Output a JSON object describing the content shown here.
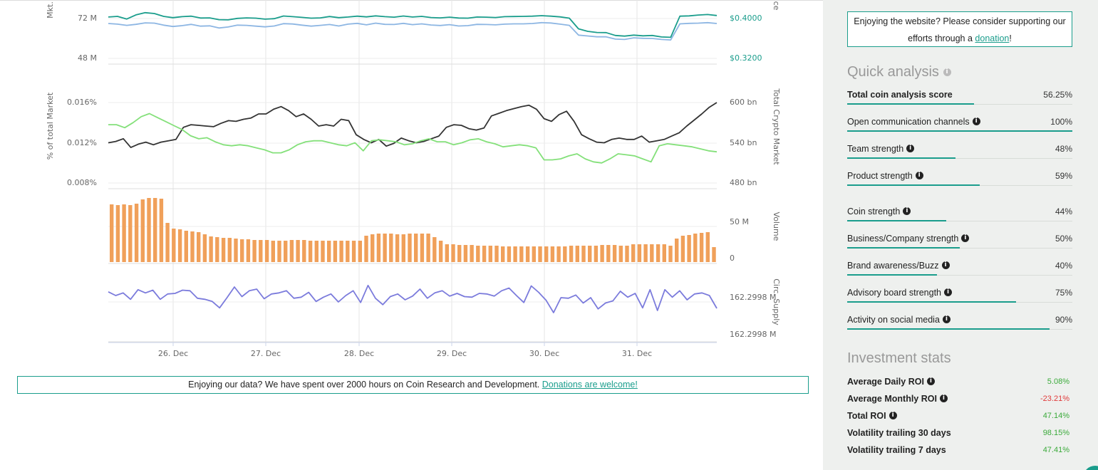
{
  "chart_data": [
    {
      "type": "line",
      "ylabel_left": "Mkt.",
      "ylabel_right": "ce",
      "yticks_left": [
        "72 M",
        "48 M"
      ],
      "yticks_right": [
        "$0.4000",
        "$0.3200"
      ],
      "series": [
        {
          "color": "#1a9d8c",
          "values": [
            72.9,
            73.3,
            71.7,
            74.2,
            75.5,
            75.0,
            73.3,
            72.5,
            73.1,
            73.4,
            72.3,
            72.4,
            71.3,
            71.2,
            72.1,
            72.4,
            72.2,
            71.6,
            71.9,
            73.5,
            73.1,
            72.7,
            72.2,
            72.4,
            73.2,
            72.5,
            72.9,
            73.4,
            73.0,
            73.6,
            73.1,
            72.8,
            73.5,
            72.9,
            73.3,
            72.6,
            72.4,
            72.8,
            72.3,
            72.2,
            72.9,
            72.8,
            72.6,
            73.1,
            73.2,
            73.3,
            73.4,
            73.7,
            73.4,
            73.0,
            72.2,
            65.8,
            64.3,
            63.6,
            63.5,
            61.8,
            61.4,
            62.0,
            61.6,
            61.8,
            60.9,
            60.7,
            73.4,
            73.6,
            74.1,
            74.4,
            73.8
          ]
        },
        {
          "color": "#8db6e3",
          "values": [
            69.0,
            68.6,
            67.9,
            68.5,
            69.4,
            69.2,
            68.0,
            67.2,
            67.7,
            68.5,
            67.4,
            67.6,
            66.3,
            66.9,
            68.0,
            67.9,
            67.4,
            67.0,
            67.5,
            68.9,
            68.7,
            68.0,
            67.4,
            67.9,
            68.4,
            67.5,
            68.6,
            69.1,
            68.2,
            69.2,
            68.5,
            68.4,
            69.1,
            68.3,
            68.8,
            68.1,
            67.8,
            68.3,
            67.5,
            67.7,
            68.5,
            68.4,
            68.2,
            68.6,
            68.8,
            68.8,
            69.0,
            69.5,
            69.3,
            68.6,
            67.9,
            62.0,
            61.5,
            61.0,
            61.0,
            59.6,
            59.4,
            60.4,
            60.1,
            60.0,
            59.4,
            59.1,
            68.8,
            69.1,
            69.2,
            69.5,
            69.0
          ]
        }
      ]
    },
    {
      "type": "line",
      "ylabel_left": "% of total Market",
      "ylabel_right": "Total Crypto Market",
      "yticks_left": [
        "0.016%",
        "0.012%",
        "0.008%"
      ],
      "yticks_right": [
        "600 bn",
        "540 bn",
        "480 bn"
      ],
      "series": [
        {
          "name": "Total Crypto Market",
          "color": "#333333",
          "axis": "right",
          "values": [
            540,
            542,
            546,
            533,
            538,
            541,
            537,
            541,
            543,
            545,
            563,
            567,
            566,
            565,
            564,
            569,
            573,
            572,
            575,
            577,
            583,
            583,
            590,
            594,
            588,
            579,
            583,
            575,
            565,
            567,
            565,
            575,
            573,
            552,
            545,
            540,
            545,
            535,
            539,
            547,
            543,
            540,
            542,
            546,
            550,
            563,
            567,
            566,
            561,
            559,
            562,
            580,
            584,
            588,
            591,
            594,
            596,
            590,
            576,
            572,
            582,
            587,
            572,
            552,
            546,
            541,
            540,
            545,
            547,
            545,
            545,
            550,
            541,
            543,
            545,
            550,
            555,
            565,
            574,
            583,
            593,
            600
          ]
        },
        {
          "name": "% of total Market",
          "color": "#84e07a",
          "axis": "left",
          "values": [
            0.0138,
            0.0138,
            0.0135,
            0.014,
            0.0146,
            0.0149,
            0.0145,
            0.0141,
            0.0137,
            0.0133,
            0.0127,
            0.0124,
            0.0125,
            0.0121,
            0.0118,
            0.0117,
            0.0118,
            0.0117,
            0.0115,
            0.0113,
            0.011,
            0.011,
            0.0113,
            0.0118,
            0.0121,
            0.0122,
            0.0122,
            0.012,
            0.0118,
            0.0117,
            0.012,
            0.0112,
            0.0122,
            0.0123,
            0.0122,
            0.0121,
            0.0118,
            0.0119,
            0.0122,
            0.0124,
            0.0121,
            0.0121,
            0.0118,
            0.012,
            0.0123,
            0.0124,
            0.0121,
            0.0119,
            0.0116,
            0.0117,
            0.0118,
            0.0117,
            0.0115,
            0.0103,
            0.0103,
            0.0104,
            0.0107,
            0.0109,
            0.0104,
            0.0101,
            0.01,
            0.0104,
            0.0109,
            0.0108,
            0.0107,
            0.0104,
            0.0101,
            0.0117,
            0.0119,
            0.0118,
            0.0117,
            0.0116,
            0.0114,
            0.0112,
            0.0111
          ]
        }
      ]
    },
    {
      "type": "bar",
      "ylabel_right": "Volume",
      "yticks_right": [
        "50 M",
        "0"
      ],
      "color": "#f0a05a",
      "values": [
        81,
        80,
        81,
        80,
        82,
        88,
        90,
        90,
        89,
        55,
        47,
        46,
        44,
        43,
        42,
        39,
        36,
        35,
        34,
        34,
        33,
        32,
        32,
        31,
        31,
        31,
        30,
        30,
        30,
        31,
        31,
        31,
        30,
        30,
        30,
        30,
        30,
        30,
        30,
        30,
        30,
        37,
        39,
        40,
        40,
        40,
        39,
        39,
        40,
        40,
        40,
        40,
        35,
        30,
        25,
        25,
        24,
        24,
        24,
        23,
        23,
        23,
        23,
        22,
        22,
        22,
        22,
        22,
        22,
        22,
        22,
        22,
        22,
        22,
        23,
        23,
        23,
        23,
        23,
        24,
        24,
        24,
        23,
        23,
        25,
        25,
        25,
        25,
        25,
        25,
        23,
        33,
        37,
        38,
        40,
        41,
        42,
        21
      ]
    },
    {
      "type": "line",
      "ylabel_right": "Circ. Supply",
      "yticks_right": [
        "162.2998 M",
        "162.2998 M"
      ],
      "series": [
        {
          "color": "#7b7bdc",
          "values": [
            67,
            60,
            65,
            53,
            71,
            65,
            70,
            53,
            63,
            64,
            70,
            69,
            55,
            53,
            49,
            37,
            56,
            76,
            58,
            69,
            72,
            54,
            63,
            65,
            69,
            55,
            57,
            66,
            49,
            57,
            63,
            48,
            60,
            69,
            47,
            79,
            55,
            43,
            58,
            63,
            52,
            59,
            72,
            55,
            65,
            69,
            59,
            64,
            58,
            57,
            64,
            63,
            59,
            69,
            74,
            60,
            47,
            78,
            66,
            51,
            28,
            56,
            55,
            61,
            46,
            56,
            35,
            46,
            50,
            68,
            57,
            64,
            37,
            71,
            32,
            71,
            57,
            69,
            52,
            63,
            65,
            60,
            36
          ]
        }
      ]
    }
  ],
  "x_axis": {
    "ticks": [
      "26. Dec",
      "27. Dec",
      "28. Dec",
      "29. Dec",
      "30. Dec",
      "31. Dec"
    ]
  },
  "data_banner": {
    "text": "Enjoying our data? We have spent over 2000 hours on Coin Research and Development.",
    "link": "Donations are welcome!"
  },
  "sidebar": {
    "support": {
      "text": "Enjoying the website? Please consider supporting our efforts through a",
      "link": "donation",
      "suffix": "!"
    },
    "quick_analysis": {
      "title": "Quick analysis",
      "items": [
        {
          "label": "Total coin analysis score",
          "value": "56.25%",
          "bold": true,
          "fraction": 0.5625
        },
        {
          "label": "Open communication channels",
          "value": "100%",
          "fraction": 1.0
        },
        {
          "label": "Team strength",
          "value": "48%",
          "fraction": 0.48
        },
        {
          "label": "Product strength",
          "value": "59%",
          "fraction": 0.59
        },
        {
          "label": "Coin strength",
          "value": "44%",
          "fraction": 0.44
        },
        {
          "label": "Business/Company strength",
          "value": "50%",
          "fraction": 0.5
        },
        {
          "label": "Brand awareness/Buzz",
          "value": "40%",
          "fraction": 0.4
        },
        {
          "label": "Advisory board strength",
          "value": "75%",
          "fraction": 0.75
        },
        {
          "label": "Activity on social media",
          "value": "90%",
          "fraction": 0.9
        }
      ]
    },
    "investment_stats": {
      "title": "Investment stats",
      "items": [
        {
          "label": "Average Daily ROI",
          "value": "5.08%",
          "color": "#3aaa3a",
          "info": true
        },
        {
          "label": "Average Monthly ROI",
          "value": "-23.21%",
          "color": "#e03a3a",
          "info": true
        },
        {
          "label": "Total ROI",
          "value": "47.14%",
          "color": "#3aaa3a",
          "info": true
        },
        {
          "label": "Volatility trailing 30 days",
          "value": "98.15%",
          "color": "#3aaa3a",
          "info": false
        },
        {
          "label": "Volatility trailing 7 days",
          "value": "47.41%",
          "color": "#3aaa3a",
          "info": false
        }
      ]
    }
  }
}
